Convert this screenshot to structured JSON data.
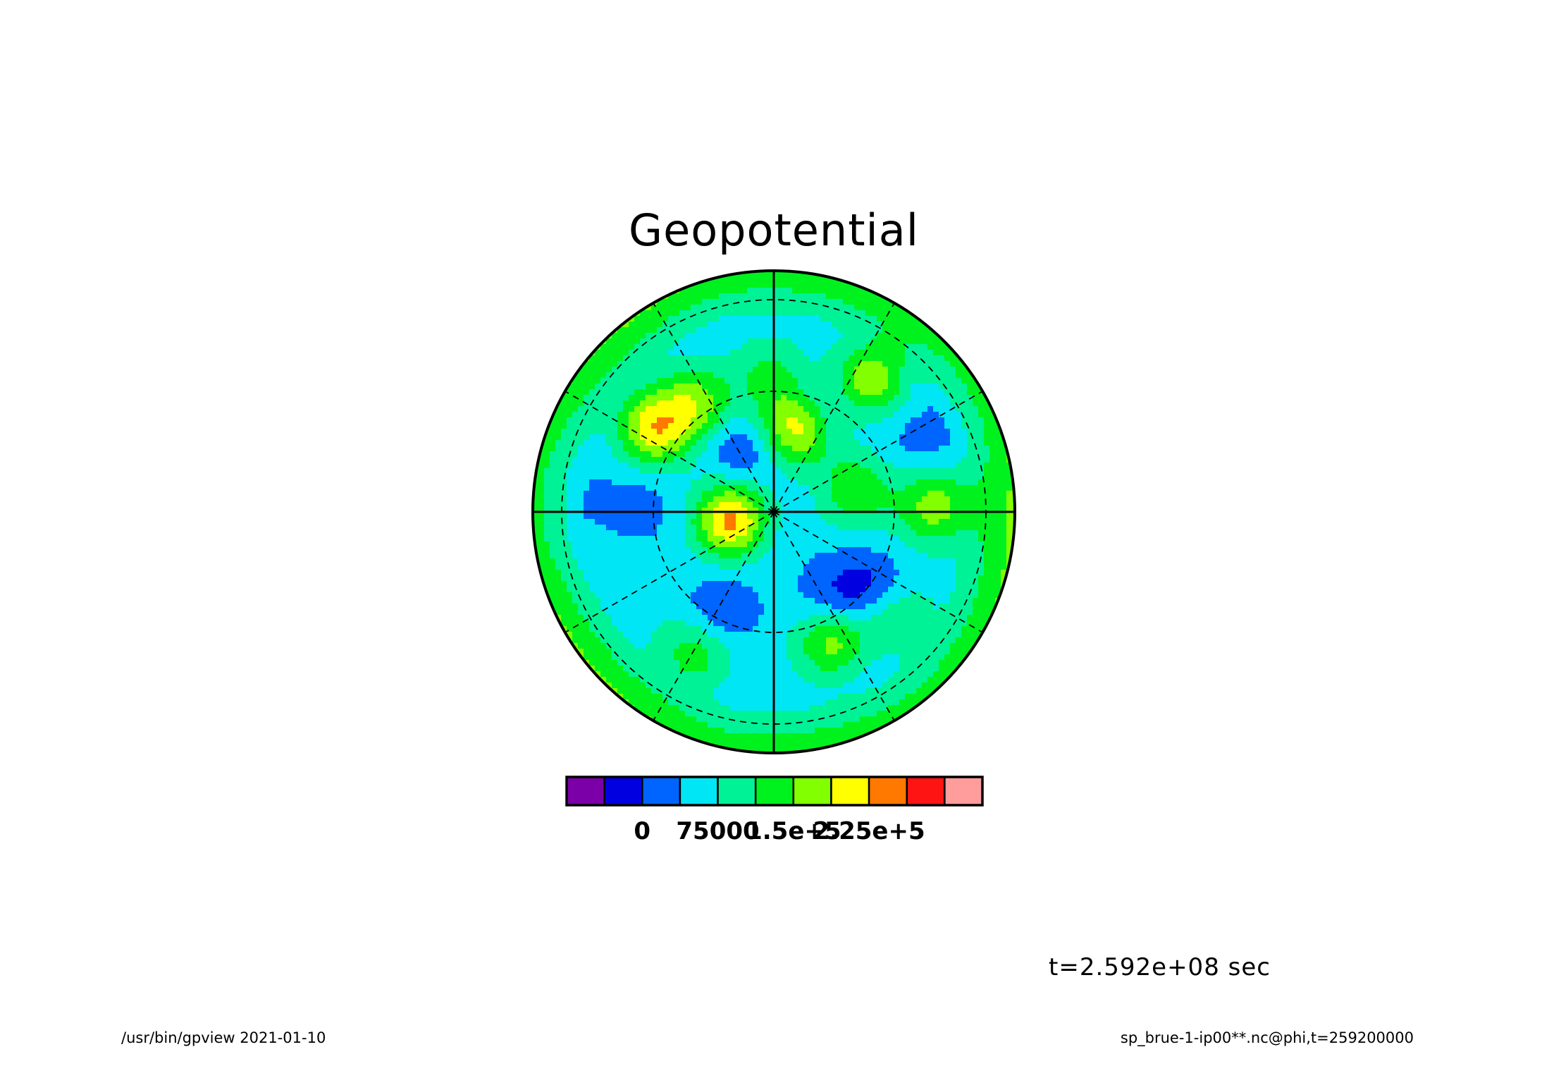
{
  "chart_data": {
    "type": "heatmap",
    "projection": "polar-stereographic",
    "title": "Geopotential",
    "field": "phi",
    "colorbar": {
      "tick_values": [
        0,
        75000,
        150000,
        225000
      ],
      "tick_labels": [
        "0",
        "75000",
        "1.5e+5",
        "2.25e+5"
      ],
      "levels": [
        -37500,
        0,
        37500,
        75000,
        112500,
        150000,
        187500,
        225000,
        262500
      ],
      "colors": [
        "#7b00a8",
        "#0000e0",
        "#0064ff",
        "#00e6f5",
        "#00f296",
        "#00f21e",
        "#82ff00",
        "#ffff00",
        "#ff7800",
        "#ff1414",
        "#ff9c9c"
      ]
    },
    "grid": {
      "meridians_deg": [
        0,
        30,
        60,
        90,
        120,
        150,
        180,
        210,
        240,
        270,
        300,
        330
      ],
      "latitude_circles_fraction": [
        0.5,
        0.88
      ]
    },
    "features": [
      {
        "x": -0.18,
        "y": 0.03,
        "value": 240000
      },
      {
        "x": -0.5,
        "y": -0.34,
        "value": 205000
      },
      {
        "x": 0.09,
        "y": -0.35,
        "value": 205000
      },
      {
        "x": 0.4,
        "y": -0.55,
        "value": 185000
      },
      {
        "x": 0.25,
        "y": 0.53,
        "value": 180000
      },
      {
        "x": -0.32,
        "y": -0.45,
        "value": 160000
      },
      {
        "x": 0.67,
        "y": -0.03,
        "value": 160000
      },
      {
        "x": 0.34,
        "y": -0.1,
        "value": 145000
      },
      {
        "x": -0.32,
        "y": 0.58,
        "value": 140000
      },
      {
        "x": 0.52,
        "y": 0.45,
        "value": 125000
      },
      {
        "x": -0.02,
        "y": -0.57,
        "value": 120000
      },
      {
        "x": -0.14,
        "y": -0.26,
        "value": -12000
      },
      {
        "x": -0.23,
        "y": 0.42,
        "value": -8000
      },
      {
        "x": 0.25,
        "y": 0.38,
        "value": -4000
      },
      {
        "x": 0.4,
        "y": 0.3,
        "value": -2000
      },
      {
        "x": 0.2,
        "y": -0.45,
        "value": 15000
      },
      {
        "x": 0.62,
        "y": -0.28,
        "value": 25000
      },
      {
        "x": -0.55,
        "y": -0.05,
        "value": 30000
      },
      {
        "x": 0.02,
        "y": 0.06,
        "value": 40000
      },
      {
        "x": -0.4,
        "y": 0.15,
        "value": 45000
      },
      {
        "x": 0.4,
        "y": 0.6,
        "value": 40000
      }
    ]
  },
  "time_label": "t=2.592e+08 sec",
  "footer": {
    "left": "/usr/bin/gpview  2021-01-10",
    "right": "sp_brue-1-ip00**.nc@phi,t=259200000"
  }
}
